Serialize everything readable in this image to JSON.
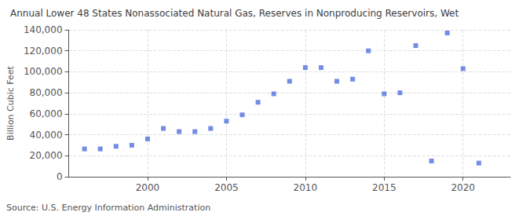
{
  "chart_data": {
    "type": "scatter",
    "title": "Annual Lower 48 States Nonassociated Natural Gas, Reserves in Nonproducing Reservoirs, Wet",
    "ylabel": "Billion Cubic Feet",
    "annotations": [
      "Source: U.S. Energy Information Administration"
    ],
    "x": [
      1996,
      1997,
      1998,
      1999,
      2000,
      2001,
      2002,
      2003,
      2004,
      2005,
      2006,
      2007,
      2008,
      2009,
      2010,
      2011,
      2012,
      2013,
      2014,
      2015,
      2016,
      2017,
      2018,
      2019,
      2020,
      2021
    ],
    "values": [
      26500,
      26500,
      29000,
      30000,
      36000,
      46000,
      43000,
      43000,
      46000,
      53000,
      59000,
      71000,
      79000,
      91000,
      104000,
      104000,
      91000,
      93000,
      120000,
      79000,
      80000,
      125000,
      15000,
      137000,
      103000,
      13000
    ],
    "marker": "square",
    "xlim": [
      1995,
      2023
    ],
    "xticks": [
      2000,
      2005,
      2010,
      2015,
      2020
    ],
    "ylim": [
      0,
      140000
    ],
    "yticks": [
      0,
      {
        "value": 20000,
        "label": "20,000"
      },
      {
        "value": 40000,
        "label": "40,000"
      },
      {
        "value": 60000,
        "label": "60,000"
      },
      {
        "value": 80000,
        "label": "80,000"
      },
      {
        "value": 100000,
        "label": "100,000"
      },
      {
        "value": 120000,
        "label": "120,000"
      },
      {
        "value": 140000,
        "label": "140,000"
      }
    ],
    "grid": true
  }
}
